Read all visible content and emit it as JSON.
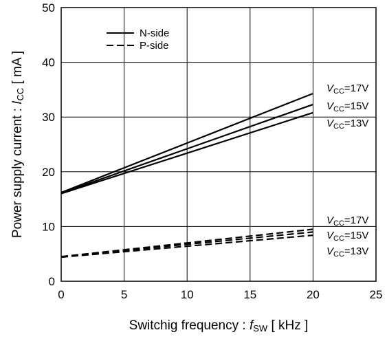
{
  "chart_data": {
    "type": "line",
    "title": "",
    "xlabel": {
      "prefix": "Switchig frequency : ",
      "var": "f",
      "sub": "SW",
      "unit": " [ kHz ]"
    },
    "ylabel": {
      "prefix": "Power supply current : ",
      "var": "I",
      "sub": "CC",
      "unit": " [ mA ]"
    },
    "xlim": [
      0,
      25
    ],
    "ylim": [
      0,
      50
    ],
    "xticks": [
      "0",
      "5",
      "10",
      "15",
      "20",
      "25"
    ],
    "yticks": [
      "0",
      "10",
      "20",
      "30",
      "40",
      "50"
    ],
    "grid": true,
    "legend": {
      "position": "top-left",
      "entries": [
        {
          "label": "N-side",
          "style": "solid"
        },
        {
          "label": "P-side",
          "style": "dashed"
        }
      ]
    },
    "series": [
      {
        "name": "N-side VCC=17V",
        "label_var": "V",
        "label_sub": "CC",
        "label_val": "=17V",
        "style": "solid",
        "x": [
          0,
          20
        ],
        "y": [
          16.2,
          34.3
        ]
      },
      {
        "name": "N-side VCC=15V",
        "label_var": "V",
        "label_sub": "CC",
        "label_val": "=15V",
        "style": "solid",
        "x": [
          0,
          20
        ],
        "y": [
          16.1,
          32.3
        ]
      },
      {
        "name": "N-side VCC=13V",
        "label_var": "V",
        "label_sub": "CC",
        "label_val": "=13V",
        "style": "solid",
        "x": [
          0,
          20
        ],
        "y": [
          16.0,
          30.8
        ]
      },
      {
        "name": "P-side VCC=17V",
        "label_var": "V",
        "label_sub": "CC",
        "label_val": "=17V",
        "style": "dashed",
        "x": [
          0,
          20
        ],
        "y": [
          4.5,
          9.5
        ]
      },
      {
        "name": "P-side VCC=15V",
        "label_var": "V",
        "label_sub": "CC",
        "label_val": "=15V",
        "style": "dashed",
        "x": [
          0,
          20
        ],
        "y": [
          4.5,
          9.0
        ]
      },
      {
        "name": "P-side VCC=13V",
        "label_var": "V",
        "label_sub": "CC",
        "label_val": "=13V",
        "style": "dashed",
        "x": [
          0,
          20
        ],
        "y": [
          4.4,
          8.4
        ]
      }
    ]
  }
}
